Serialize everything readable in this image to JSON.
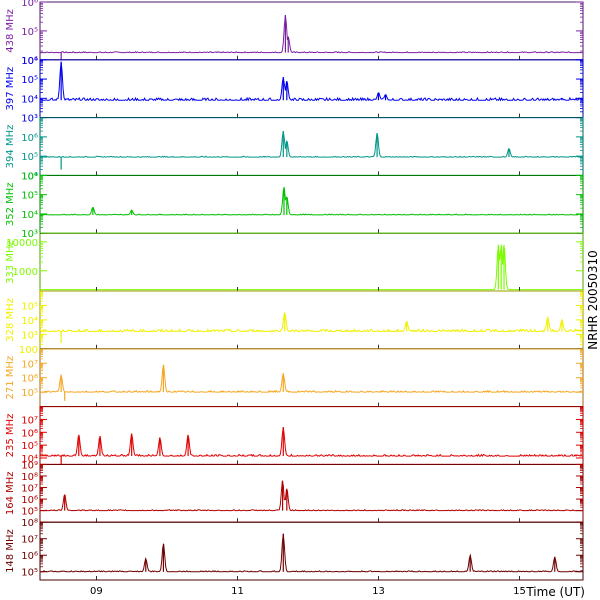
{
  "side_label": "NRHR 20050310",
  "chart_data": {
    "type": "line",
    "x_axis": {
      "label": "Time (UT)",
      "ticks": [
        {
          "value": 9,
          "label": "09"
        },
        {
          "value": 11,
          "label": "11"
        },
        {
          "value": 13,
          "label": "13"
        },
        {
          "value": 15,
          "label": "15"
        }
      ],
      "range": [
        8.2,
        15.9
      ]
    },
    "panels": [
      {
        "freq_label": "438 MHz",
        "color": "#7b1fa2",
        "y_scale": "log",
        "ylim": [
          4,
          6
        ],
        "ticks": [
          {
            "v": 4,
            "label": "10⁴"
          },
          {
            "v": 5,
            "label": "10⁵"
          },
          {
            "v": 6,
            "label": "10⁶"
          }
        ],
        "baseline": 4.25,
        "noise": 0.03,
        "spikes": [
          {
            "t": 11.68,
            "v": 5.55
          },
          {
            "t": 11.72,
            "v": 4.8
          },
          {
            "t": 8.5,
            "v": 3.9
          }
        ]
      },
      {
        "freq_label": "397 MHz",
        "color": "#0000ee",
        "y_scale": "log",
        "ylim": [
          3,
          6
        ],
        "ticks": [
          {
            "v": 3,
            "label": "10³"
          },
          {
            "v": 4,
            "label": "10⁴"
          },
          {
            "v": 5,
            "label": "10⁵"
          },
          {
            "v": 6,
            "label": "10⁶"
          }
        ],
        "baseline": 3.9,
        "noise": 0.12,
        "spikes": [
          {
            "t": 8.5,
            "v": 5.9
          },
          {
            "t": 11.65,
            "v": 5.1
          },
          {
            "t": 11.7,
            "v": 4.9
          },
          {
            "t": 13.0,
            "v": 4.3
          },
          {
            "t": 13.1,
            "v": 4.2
          },
          {
            "t": 15.6,
            "v": 4.0
          }
        ]
      },
      {
        "freq_label": "394 MHz",
        "color": "#009688",
        "y_scale": "log",
        "ylim": [
          4,
          7
        ],
        "ticks": [
          {
            "v": 4,
            "label": "10⁴"
          },
          {
            "v": 5,
            "label": "10⁵"
          },
          {
            "v": 6,
            "label": "10⁶"
          }
        ],
        "baseline": 4.95,
        "noise": 0.04,
        "spikes": [
          {
            "t": 11.65,
            "v": 6.3
          },
          {
            "t": 11.7,
            "v": 5.8
          },
          {
            "t": 12.98,
            "v": 6.2
          },
          {
            "t": 14.85,
            "v": 5.4
          },
          {
            "t": 8.5,
            "v": 4.3
          }
        ]
      },
      {
        "freq_label": "352 MHz",
        "color": "#00c000",
        "y_scale": "log",
        "ylim": [
          3,
          6
        ],
        "ticks": [
          {
            "v": 3,
            "label": "10³"
          },
          {
            "v": 4,
            "label": "10⁴"
          },
          {
            "v": 5,
            "label": "10⁵"
          },
          {
            "v": 6,
            "label": "10⁶"
          }
        ],
        "baseline": 3.95,
        "noise": 0.04,
        "spikes": [
          {
            "t": 11.66,
            "v": 5.4
          },
          {
            "t": 11.7,
            "v": 4.9
          },
          {
            "t": 8.95,
            "v": 4.35
          },
          {
            "t": 9.5,
            "v": 4.2
          }
        ]
      },
      {
        "freq_label": "333 MHz",
        "color": "#7cfc00",
        "y_scale": "log",
        "ylim": [
          2.3,
          4.3
        ],
        "ticks": [
          {
            "v": 3,
            "label": "1000"
          },
          {
            "v": 4,
            "label": "10000"
          }
        ],
        "baseline": 2.35,
        "noise": 0,
        "spikes": [
          {
            "t": 14.7,
            "v": 3.9
          },
          {
            "t": 14.74,
            "v": 3.9
          },
          {
            "t": 14.78,
            "v": 3.9
          }
        ]
      },
      {
        "freq_label": "328 MHz",
        "color": "#f0f000",
        "y_scale": "log",
        "ylim": [
          2,
          6
        ],
        "ticks": [
          {
            "v": 2,
            "label": "100"
          },
          {
            "v": 3,
            "label": "10³"
          },
          {
            "v": 4,
            "label": "10⁴"
          },
          {
            "v": 5,
            "label": "10⁵"
          }
        ],
        "baseline": 3.2,
        "noise": 0.15,
        "spikes": [
          {
            "t": 11.67,
            "v": 4.5
          },
          {
            "t": 13.4,
            "v": 3.9
          },
          {
            "t": 15.4,
            "v": 4.2
          },
          {
            "t": 15.6,
            "v": 4.0
          },
          {
            "t": 8.5,
            "v": 2.4
          }
        ]
      },
      {
        "freq_label": "271 MHz",
        "color": "#f5a623",
        "y_scale": "log",
        "ylim": [
          4,
          8
        ],
        "ticks": [
          {
            "v": 5,
            "label": "10⁵"
          },
          {
            "v": 6,
            "label": "10⁶"
          },
          {
            "v": 7,
            "label": "10⁷"
          }
        ],
        "baseline": 5.0,
        "noise": 0.1,
        "spikes": [
          {
            "t": 9.95,
            "v": 6.9
          },
          {
            "t": 11.65,
            "v": 6.3
          },
          {
            "t": 8.5,
            "v": 6.2
          },
          {
            "t": 8.55,
            "v": 4.4
          }
        ]
      },
      {
        "freq_label": "235 MHz",
        "color": "#e00000",
        "y_scale": "log",
        "ylim": [
          3.5,
          8
        ],
        "ticks": [
          {
            "v": 4,
            "label": "10⁴"
          },
          {
            "v": 5,
            "label": "10⁵"
          },
          {
            "v": 6,
            "label": "10⁶"
          },
          {
            "v": 7,
            "label": "10⁷"
          }
        ],
        "baseline": 4.15,
        "noise": 0.12,
        "spikes": [
          {
            "t": 8.75,
            "v": 5.8
          },
          {
            "t": 9.05,
            "v": 5.7
          },
          {
            "t": 9.5,
            "v": 5.9
          },
          {
            "t": 9.9,
            "v": 5.6
          },
          {
            "t": 10.3,
            "v": 5.8
          },
          {
            "t": 11.65,
            "v": 6.4
          },
          {
            "t": 8.5,
            "v": 3.5
          }
        ]
      },
      {
        "freq_label": "164 MHz",
        "color": "#b00000",
        "y_scale": "log",
        "ylim": [
          4,
          9
        ],
        "ticks": [
          {
            "v": 5,
            "label": "10⁵"
          },
          {
            "v": 6,
            "label": "10⁶"
          },
          {
            "v": 7,
            "label": "10⁷"
          },
          {
            "v": 8,
            "label": "10⁸"
          },
          {
            "v": 9,
            "label": "10⁹"
          }
        ],
        "baseline": 5.0,
        "noise": 0.08,
        "spikes": [
          {
            "t": 11.64,
            "v": 7.6
          },
          {
            "t": 11.7,
            "v": 6.9
          },
          {
            "t": 8.55,
            "v": 6.4
          }
        ]
      },
      {
        "freq_label": "148 MHz",
        "color": "#6d0000",
        "y_scale": "log",
        "ylim": [
          4.5,
          8
        ],
        "ticks": [
          {
            "v": 5,
            "label": "10⁵"
          },
          {
            "v": 6,
            "label": "10⁶"
          },
          {
            "v": 7,
            "label": "10⁷"
          },
          {
            "v": 8,
            "label": "10⁸"
          }
        ],
        "baseline": 5.0,
        "noise": 0.06,
        "spikes": [
          {
            "t": 11.65,
            "v": 7.3
          },
          {
            "t": 9.95,
            "v": 6.7
          },
          {
            "t": 14.3,
            "v": 6.0
          },
          {
            "t": 15.5,
            "v": 5.9
          },
          {
            "t": 9.7,
            "v": 5.8
          }
        ]
      }
    ]
  }
}
